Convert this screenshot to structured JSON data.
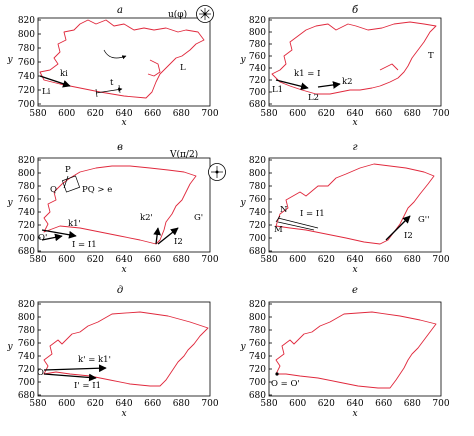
{
  "axes": {
    "x_ticks": [
      "580",
      "600",
      "620",
      "640",
      "660",
      "680",
      "700"
    ],
    "y_ticks": [
      "820",
      "800",
      "780",
      "760",
      "740",
      "720",
      "700",
      "680"
    ],
    "y_ticks_a": [
      "820",
      "800",
      "780",
      "760",
      "740",
      "720",
      "700"
    ],
    "x_label": "x",
    "y_label": "y"
  },
  "panels": [
    {
      "title": "а",
      "labels": {
        "ki": "ki",
        "t": "t",
        "L": "L",
        "Li": "Li"
      },
      "op_label": "u(φ)"
    },
    {
      "title": "б",
      "labels": {
        "k1": "k1 = I",
        "k2": "k2",
        "T": "T",
        "L1": "L1",
        "L2": "L2"
      }
    },
    {
      "title": "в",
      "labels": {
        "P": "P",
        "Q": "Q",
        "PQ": "PQ > e",
        "k1p": "k1'",
        "O": "O'",
        "I1": "I = I1",
        "k2p": "k2'",
        "Gp": "G'",
        "I2": "I2"
      },
      "op_label": "V(π/2)"
    },
    {
      "title": "г",
      "labels": {
        "N": "N",
        "M": "M",
        "I1": "I = I1",
        "Gpp": "G''",
        "I2": "I2"
      }
    },
    {
      "title": "д",
      "labels": {
        "kk": "k' = k1'",
        "I1p": "I' = I1",
        "O": "O"
      }
    },
    {
      "title": "е",
      "labels": {
        "OO": "O = O'"
      }
    }
  ],
  "colors": {
    "contour": "#e0283c",
    "axes": "#000000"
  }
}
